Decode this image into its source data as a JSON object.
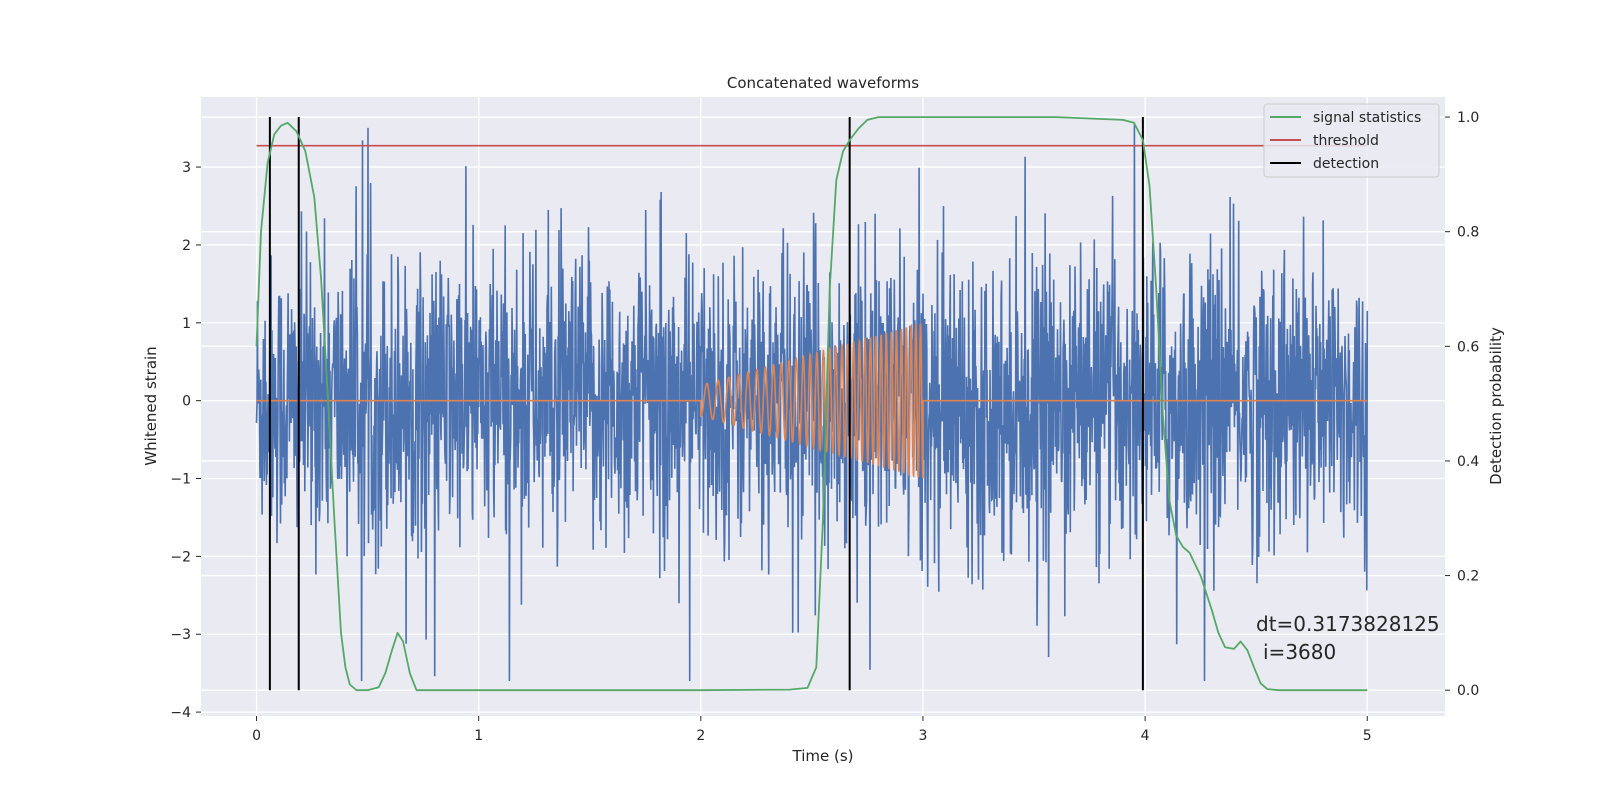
{
  "chart_data": {
    "type": "line",
    "title": "Concatenated waveforms",
    "xlabel": "Time (s)",
    "ylabel": "Whitened strain",
    "y2label": "Detection probability",
    "xlim": [
      -0.25,
      5.35
    ],
    "ylim": [
      -4.05,
      3.9
    ],
    "y2lim": [
      -0.045,
      1.035
    ],
    "xticks": [
      "0",
      "1",
      "2",
      "3",
      "4",
      "5"
    ],
    "yticks": [
      "3",
      "2",
      "1",
      "0",
      "−1",
      "−2",
      "−3",
      "−4"
    ],
    "y2ticks": [
      "1.0",
      "0.8",
      "0.6",
      "0.4",
      "0.2",
      "0.0"
    ],
    "grid": true,
    "legend_position": "top-right",
    "legend": [
      "signal statistics",
      "threshold",
      "detection"
    ],
    "colors": {
      "background": "#eaeaf2",
      "strain": "#4c72b0",
      "injection": "#dd8452",
      "signal_statistics": "#55a868",
      "threshold": "#c44e52",
      "detection": "#000000"
    },
    "series": [
      {
        "name": "",
        "axis": "left",
        "style": "noise",
        "x_range": [
          0,
          5
        ],
        "typical_envelope": 1.3,
        "peak_envelope": 3.4
      },
      {
        "name": "",
        "axis": "left",
        "style": "chirp",
        "x_range": [
          0,
          5
        ],
        "burst_start": 2.0,
        "burst_end": 3.0,
        "amplitude_start": 0.2,
        "amplitude_end": 1.0,
        "frequency_start": 18,
        "frequency_end": 48
      },
      {
        "name": "signal statistics",
        "axis": "right",
        "x": [
          0,
          0.02,
          0.05,
          0.08,
          0.11,
          0.14,
          0.18,
          0.22,
          0.26,
          0.29,
          0.32,
          0.35,
          0.38,
          0.4,
          0.42,
          0.45,
          0.5,
          0.55,
          0.58,
          0.61,
          0.635,
          0.66,
          0.69,
          0.72,
          0.8,
          1.0,
          1.5,
          2.0,
          2.4,
          2.48,
          2.52,
          2.55,
          2.58,
          2.61,
          2.64,
          2.67,
          2.71,
          2.75,
          2.8,
          2.85,
          2.9,
          3.2,
          3.6,
          3.9,
          3.95,
          3.99,
          4.02,
          4.05,
          4.08,
          4.11,
          4.14,
          4.17,
          4.2,
          4.25,
          4.3,
          4.33,
          4.36,
          4.4,
          4.43,
          4.46,
          4.49,
          4.52,
          4.55,
          4.6,
          4.8,
          5.0
        ],
        "values": [
          0.6,
          0.8,
          0.92,
          0.97,
          0.985,
          0.99,
          0.975,
          0.94,
          0.86,
          0.72,
          0.52,
          0.3,
          0.1,
          0.04,
          0.01,
          0.0,
          0.0,
          0.005,
          0.03,
          0.07,
          0.1,
          0.085,
          0.03,
          0.0,
          0.0,
          0.0,
          0.0,
          0.0,
          0.001,
          0.004,
          0.04,
          0.3,
          0.7,
          0.89,
          0.94,
          0.96,
          0.98,
          0.995,
          1.0,
          1.0,
          1.0,
          1.0,
          1.0,
          0.995,
          0.99,
          0.96,
          0.88,
          0.7,
          0.48,
          0.33,
          0.27,
          0.25,
          0.24,
          0.2,
          0.14,
          0.1,
          0.075,
          0.072,
          0.085,
          0.07,
          0.04,
          0.012,
          0.002,
          0.0,
          0.0,
          0.0
        ]
      },
      {
        "name": "threshold",
        "axis": "right",
        "x": [
          0,
          5
        ],
        "values": [
          0.95,
          0.95
        ]
      }
    ],
    "detections": [
      0.06,
      0.19,
      2.67,
      3.99
    ],
    "detection_range": [
      0.0,
      1.0
    ],
    "annotations": [
      "dt=0.3173828125",
      "i=3680"
    ]
  }
}
